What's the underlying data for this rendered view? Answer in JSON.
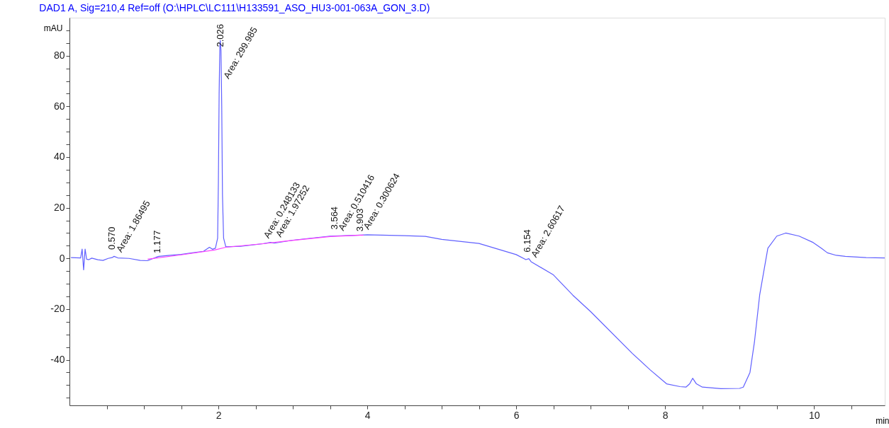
{
  "chart_data": {
    "type": "line",
    "title": "DAD1 A, Sig=210,4 Ref=off (O:\\HPLC\\LC111\\H133591_ASO_HU3-001-063A_GON_3.D)",
    "xlabel": "min",
    "ylabel": "mAU",
    "xlim": [
      0,
      10.95
    ],
    "ylim": [
      -58,
      95
    ],
    "xticks": [
      {
        "value": 0.5,
        "label": null
      },
      {
        "value": 1,
        "label": null
      },
      {
        "value": 1.5,
        "label": null
      },
      2,
      {
        "value": 2.5,
        "label": null
      },
      {
        "value": 3,
        "label": null
      },
      {
        "value": 3.5,
        "label": null
      },
      4,
      {
        "value": 4.5,
        "label": null
      },
      {
        "value": 5,
        "label": null
      },
      {
        "value": 5.5,
        "label": null
      },
      6,
      {
        "value": 6.5,
        "label": null
      },
      {
        "value": 7,
        "label": null
      },
      {
        "value": 7.5,
        "label": null
      },
      8,
      {
        "value": 8.5,
        "label": null
      },
      {
        "value": 9,
        "label": null
      },
      {
        "value": 9.5,
        "label": null
      },
      10,
      {
        "value": 10.5,
        "label": null
      }
    ],
    "yticks": [
      {
        "value": -55,
        "label": null
      },
      {
        "value": -50,
        "label": null
      },
      {
        "value": -45,
        "label": null
      },
      -40,
      {
        "value": -35,
        "label": null
      },
      {
        "value": -30,
        "label": null
      },
      {
        "value": -25,
        "label": null
      },
      -20,
      {
        "value": -15,
        "label": null
      },
      {
        "value": -10,
        "label": null
      },
      {
        "value": -5,
        "label": null
      },
      0,
      {
        "value": 5,
        "label": null
      },
      {
        "value": 10,
        "label": null
      },
      {
        "value": 15,
        "label": null
      },
      20,
      {
        "value": 25,
        "label": null
      },
      {
        "value": 30,
        "label": null
      },
      {
        "value": 35,
        "label": null
      },
      40,
      {
        "value": 45,
        "label": null
      },
      {
        "value": 50,
        "label": null
      },
      {
        "value": 55,
        "label": null
      },
      60,
      {
        "value": 65,
        "label": null
      },
      {
        "value": 70,
        "label": null
      },
      {
        "value": 75,
        "label": null
      },
      80,
      {
        "value": 85,
        "label": null
      },
      {
        "value": 90,
        "label": null
      }
    ],
    "grid": false,
    "marker": "none",
    "line_style": "solid",
    "series": [
      {
        "color": "#6060ff",
        "x": [
          0.02,
          0.15,
          0.17,
          0.19,
          0.21,
          0.23,
          0.26,
          0.3,
          0.38,
          0.45,
          0.52,
          0.57,
          0.6,
          0.65,
          0.8,
          0.95,
          1.05,
          1.15,
          1.177,
          1.2,
          1.35,
          1.5,
          1.65,
          1.8,
          1.88,
          1.92,
          1.96,
          1.99,
          2.0,
          2.01,
          2.02,
          2.026,
          2.035,
          2.045,
          2.055,
          2.07,
          2.1,
          2.3,
          2.6,
          2.7,
          2.75,
          3.0,
          3.5,
          3.903,
          4.0,
          4.5,
          4.78,
          5.0,
          5.5,
          6.0,
          6.13,
          6.17,
          6.2,
          6.5,
          6.76,
          7.0,
          7.56,
          7.8,
          8.02,
          8.2,
          8.28,
          8.33,
          8.37,
          8.42,
          8.5,
          8.75,
          9.0,
          9.05,
          9.14,
          9.2,
          9.27,
          9.38,
          9.5,
          9.62,
          9.8,
          9.98,
          10.1,
          10.18,
          10.3,
          10.42,
          10.7,
          10.95
        ],
        "values": [
          0.3,
          0.2,
          3.7,
          -4.5,
          3.7,
          -0.3,
          -0.5,
          0.1,
          -0.5,
          -0.8,
          0.0,
          0.3,
          0.8,
          0.2,
          0.0,
          -0.8,
          -0.9,
          0.3,
          0.6,
          0.8,
          1.2,
          1.6,
          2.2,
          2.8,
          4.4,
          3.6,
          4.0,
          8,
          30,
          65,
          84,
          86,
          82,
          60,
          25,
          8,
          4.6,
          4.8,
          5.8,
          6.3,
          6.0,
          7.2,
          8.8,
          9.2,
          9.3,
          9.0,
          8.7,
          7.5,
          5.9,
          1.5,
          -0.5,
          -0.1,
          -1.3,
          -6.5,
          -14.5,
          -21,
          -37.5,
          -44,
          -49.5,
          -50.6,
          -50.8,
          -49.5,
          -47.3,
          -49.5,
          -50.8,
          -51.4,
          -51.3,
          -50.8,
          -45,
          -33,
          -14.5,
          4,
          8.8,
          10,
          8.8,
          6.4,
          4.0,
          2.2,
          1.2,
          0.8,
          0.3,
          0.2
        ]
      },
      {
        "color": "#ff40ff",
        "x": [
          1.05,
          1.5,
          1.95,
          2.1,
          2.6,
          2.9,
          3.5,
          3.95
        ],
        "values": [
          -0.3,
          1.4,
          3.3,
          4.4,
          5.8,
          6.8,
          8.6,
          9.2
        ]
      }
    ],
    "annotations": [
      {
        "text": "0.570",
        "x": 0.57,
        "y": 2
      },
      {
        "text": "Area: 1.86495",
        "x": 0.64,
        "y": 1.5
      },
      {
        "text": "1.177",
        "x": 1.177,
        "y": 0.6
      },
      {
        "text": "2.026",
        "x": 2.026,
        "y": 82
      },
      {
        "text": "Area: 299.985",
        "x": 2.08,
        "y": 70
      },
      {
        "text": "Area: 0.248133",
        "x": 2.62,
        "y": 7
      },
      {
        "text": "Area: 1.97252",
        "x": 2.78,
        "y": 7.5
      },
      {
        "text": "3.564",
        "x": 3.564,
        "y": 10
      },
      {
        "text": "Area: 0.510416",
        "x": 3.62,
        "y": 10
      },
      {
        "text": "3.903",
        "x": 3.903,
        "y": 9.2
      },
      {
        "text": "Area: 0.300624",
        "x": 3.96,
        "y": 10.5
      },
      {
        "text": "6.154",
        "x": 6.154,
        "y": 1
      },
      {
        "text": "Area: 2.60617",
        "x": 6.21,
        "y": -0.5
      }
    ]
  }
}
